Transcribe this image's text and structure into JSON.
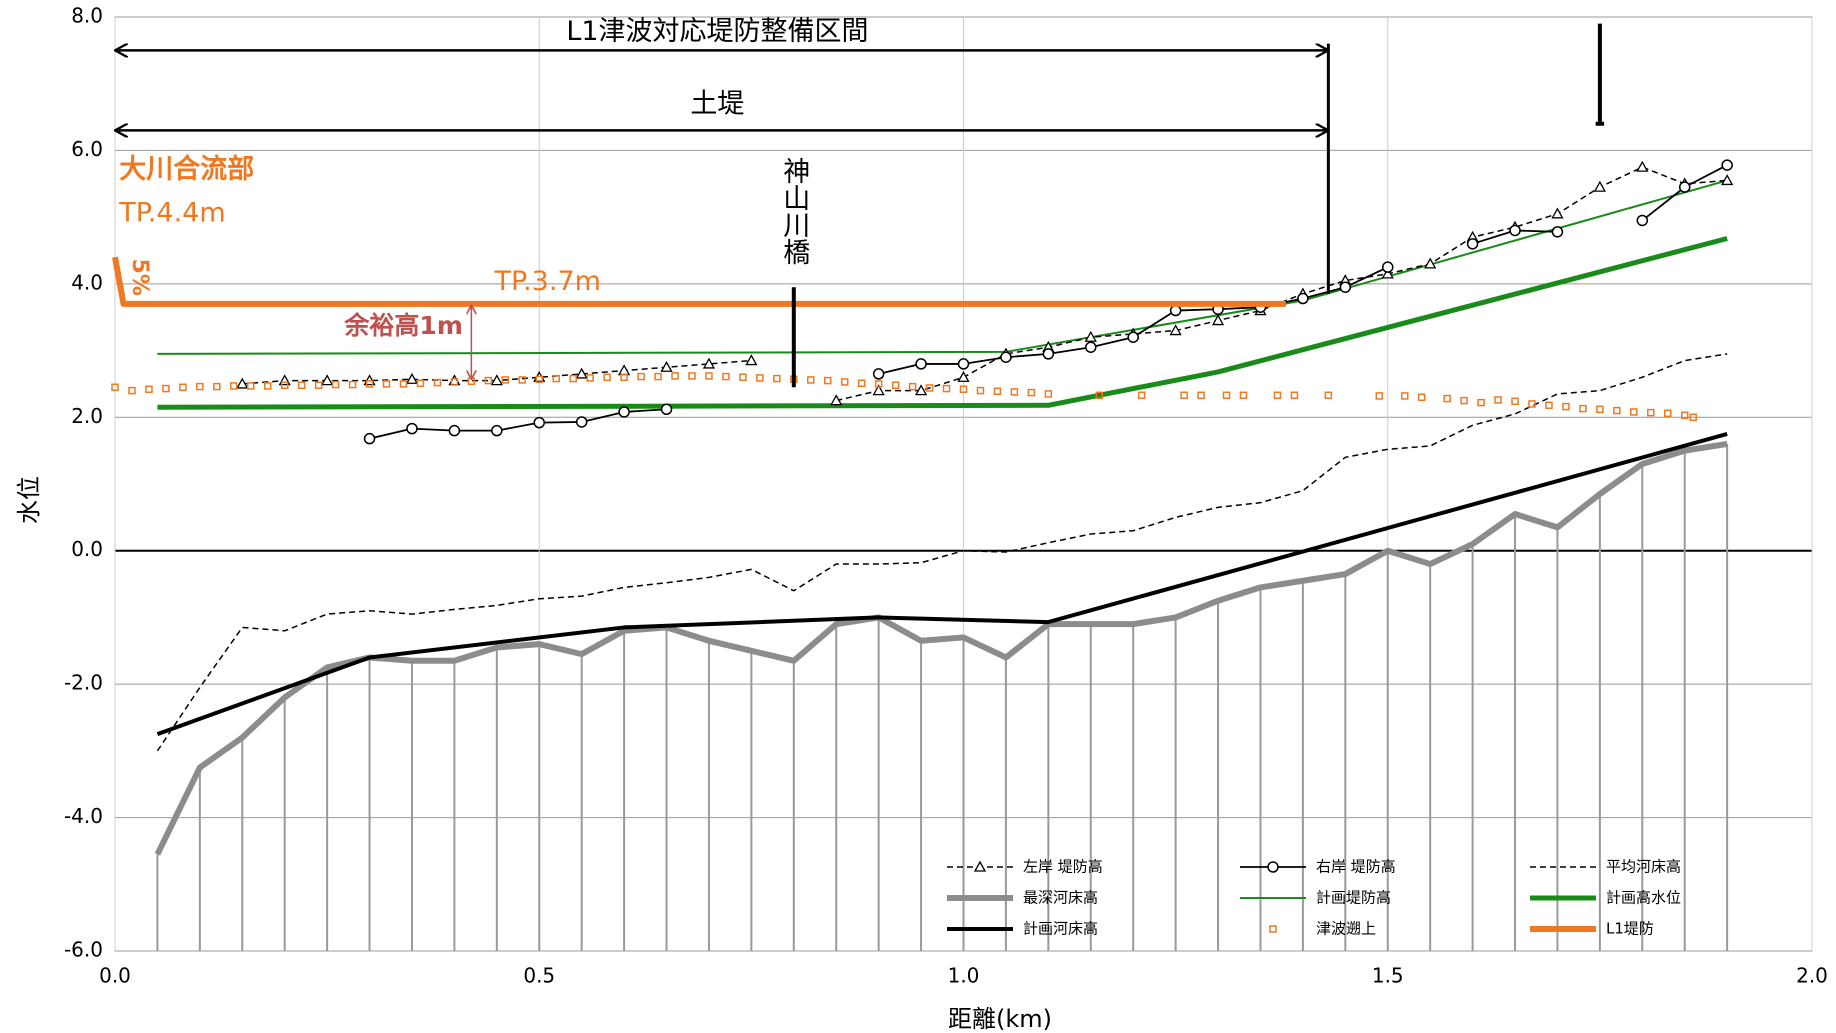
{
  "chart_data": {
    "type": "line",
    "x_label": "距離(km)",
    "y_label": "水位",
    "xlim": [
      0,
      2
    ],
    "xticks": [
      {
        "value": 0,
        "label": "0.0"
      },
      0.5,
      {
        "value": 1,
        "label": "1.0"
      },
      1.5,
      {
        "value": 2,
        "label": "2.0"
      }
    ],
    "ylim": [
      -6,
      8
    ],
    "yticks": [
      {
        "value": -6,
        "label": "-6.0"
      },
      {
        "value": -4,
        "label": "-4.0"
      },
      {
        "value": -2,
        "label": "-2.0"
      },
      {
        "value": 0,
        "label": "0.0"
      },
      {
        "value": 2,
        "label": "2.0"
      },
      {
        "value": 4,
        "label": "4.0"
      },
      {
        "value": 6,
        "label": "6.0"
      },
      {
        "value": 8,
        "label": "8.0"
      }
    ],
    "grid": true,
    "series": [
      {
        "name": "左岸 堤防高",
        "color": "#000000",
        "dashed": true,
        "marker": "triangle",
        "x": [
          0.15,
          0.2,
          0.25,
          0.3,
          0.35,
          0.4,
          0.45,
          0.5,
          0.55,
          0.6,
          0.65,
          0.7,
          0.75,
          0.8,
          0.85,
          0.9,
          0.95,
          1.0,
          1.05,
          1.1,
          1.15,
          1.2,
          1.25,
          1.3,
          1.35,
          1.4,
          1.45,
          1.5,
          1.55,
          1.6,
          1.65,
          1.7,
          1.75,
          1.8,
          1.85,
          1.9
        ],
        "values": [
          2.5,
          2.55,
          2.55,
          2.55,
          2.57,
          2.55,
          2.55,
          2.6,
          2.65,
          2.7,
          2.75,
          2.8,
          2.85,
          null,
          2.25,
          2.4,
          2.4,
          2.6,
          2.95,
          3.05,
          3.2,
          3.25,
          3.3,
          3.45,
          3.6,
          3.85,
          4.05,
          4.15,
          4.3,
          4.7,
          4.85,
          5.05,
          5.45,
          5.75,
          5.5,
          5.55
        ]
      },
      {
        "name": "右岸 堤防高",
        "color": "#000000",
        "dashed": false,
        "marker": "circle",
        "x": [
          0.3,
          0.35,
          0.4,
          0.45,
          0.5,
          0.55,
          0.6,
          0.65,
          0.7,
          0.9,
          0.95,
          1.0,
          1.05,
          1.1,
          1.15,
          1.2,
          1.25,
          1.3,
          1.35,
          1.4,
          1.45,
          1.5,
          1.55,
          1.6,
          1.65,
          1.7,
          1.75,
          1.8,
          1.85,
          1.9
        ],
        "values": [
          1.68,
          1.83,
          1.8,
          1.8,
          1.92,
          1.93,
          2.08,
          2.12,
          null,
          2.65,
          2.8,
          2.8,
          2.9,
          2.95,
          3.05,
          3.2,
          3.6,
          3.62,
          3.65,
          3.78,
          3.95,
          4.25,
          null,
          4.6,
          4.8,
          4.78,
          null,
          4.95,
          5.45,
          5.78
        ]
      },
      {
        "name": "平均河床高",
        "color": "#000000",
        "dashed": true,
        "marker": "none",
        "x": [
          0.05,
          0.1,
          0.15,
          0.2,
          0.25,
          0.3,
          0.35,
          0.4,
          0.45,
          0.5,
          0.55,
          0.6,
          0.65,
          0.7,
          0.75,
          0.8,
          0.85,
          0.9,
          0.95,
          1.0,
          1.05,
          1.1,
          1.15,
          1.2,
          1.25,
          1.3,
          1.35,
          1.4,
          1.45,
          1.5,
          1.55,
          1.6,
          1.65,
          1.7,
          1.75,
          1.8,
          1.85,
          1.9
        ],
        "values": [
          -3.0,
          -2.05,
          -1.15,
          -1.2,
          -0.95,
          -0.9,
          -0.95,
          -0.88,
          -0.82,
          -0.72,
          -0.68,
          -0.55,
          -0.48,
          -0.4,
          -0.28,
          -0.6,
          -0.2,
          -0.2,
          -0.18,
          0.0,
          -0.02,
          0.12,
          0.25,
          0.3,
          0.5,
          0.65,
          0.72,
          0.9,
          1.4,
          1.52,
          1.57,
          1.88,
          2.05,
          2.35,
          2.4,
          2.6,
          2.85,
          2.95
        ]
      },
      {
        "name": "最深河床高",
        "color": "#8c8c8c",
        "dashed": false,
        "marker": "none",
        "drop_lines": true,
        "x": [
          0.05,
          0.1,
          0.15,
          0.2,
          0.25,
          0.3,
          0.35,
          0.4,
          0.45,
          0.5,
          0.55,
          0.6,
          0.65,
          0.7,
          0.75,
          0.8,
          0.85,
          0.9,
          0.95,
          1.0,
          1.05,
          1.1,
          1.15,
          1.2,
          1.25,
          1.3,
          1.35,
          1.4,
          1.45,
          1.5,
          1.55,
          1.6,
          1.65,
          1.7,
          1.75,
          1.8,
          1.85,
          1.9
        ],
        "values": [
          -4.55,
          -3.25,
          -2.8,
          -2.2,
          -1.75,
          -1.6,
          -1.65,
          -1.65,
          -1.45,
          -1.4,
          -1.55,
          -1.2,
          -1.15,
          -1.35,
          -1.5,
          -1.65,
          -1.1,
          -1.0,
          -1.35,
          -1.3,
          -1.6,
          -1.1,
          -1.1,
          -1.1,
          -1.0,
          -0.75,
          -0.55,
          -0.45,
          -0.35,
          0.0,
          -0.2,
          0.1,
          0.55,
          0.35,
          0.85,
          1.3,
          1.5,
          1.6
        ]
      },
      {
        "name": "計画堤防高",
        "color": "#1a8a1a",
        "dashed": false,
        "marker": "none",
        "x": [
          0.05,
          1.05,
          1.4,
          1.9
        ],
        "values": [
          2.95,
          2.98,
          3.75,
          5.55
        ]
      },
      {
        "name": "計画高水位",
        "color": "#1a8a1a",
        "dashed": false,
        "marker": "none",
        "x": [
          0.05,
          1.1,
          1.3,
          1.9
        ],
        "values": [
          2.15,
          2.18,
          2.68,
          4.68
        ]
      },
      {
        "name": "計画河床高",
        "color": "#000000",
        "dashed": false,
        "marker": "none",
        "x": [
          0.05,
          0.3,
          0.6,
          0.9,
          1.1,
          1.9
        ],
        "values": [
          -2.75,
          -1.6,
          -1.15,
          -1.0,
          -1.07,
          1.75
        ]
      },
      {
        "name": "津波遡上",
        "color": "#f07820",
        "dashed": false,
        "marker": "square",
        "no_line": true,
        "x": [
          0,
          0.02,
          0.04,
          0.06,
          0.08,
          0.1,
          0.12,
          0.14,
          0.16,
          0.18,
          0.2,
          0.22,
          0.24,
          0.26,
          0.28,
          0.3,
          0.32,
          0.34,
          0.36,
          0.38,
          0.4,
          0.42,
          0.44,
          0.46,
          0.48,
          0.5,
          0.52,
          0.54,
          0.56,
          0.58,
          0.6,
          0.62,
          0.64,
          0.66,
          0.68,
          0.7,
          0.72,
          0.74,
          0.76,
          0.78,
          0.8,
          0.82,
          0.84,
          0.86,
          0.88,
          0.9,
          0.92,
          0.94,
          0.96,
          0.98,
          1.0,
          1.02,
          1.04,
          1.06,
          1.08,
          1.1,
          1.16,
          1.21,
          1.26,
          1.28,
          1.31,
          1.33,
          1.37,
          1.39,
          1.43,
          1.49,
          1.52,
          1.54,
          1.57,
          1.59,
          1.61,
          1.63,
          1.65,
          1.67,
          1.69,
          1.71,
          1.73,
          1.75,
          1.77,
          1.79,
          1.81,
          1.83,
          1.85,
          1.86
        ],
        "values": [
          2.45,
          2.4,
          2.42,
          2.43,
          2.45,
          2.46,
          2.46,
          2.47,
          2.47,
          2.47,
          2.48,
          2.48,
          2.48,
          2.49,
          2.49,
          2.5,
          2.5,
          2.5,
          2.51,
          2.52,
          2.53,
          2.54,
          2.55,
          2.56,
          2.56,
          2.57,
          2.58,
          2.58,
          2.59,
          2.6,
          2.6,
          2.61,
          2.61,
          2.62,
          2.62,
          2.62,
          2.61,
          2.6,
          2.59,
          2.58,
          2.57,
          2.56,
          2.55,
          2.53,
          2.51,
          2.5,
          2.48,
          2.46,
          2.44,
          2.43,
          2.42,
          2.4,
          2.39,
          2.38,
          2.37,
          2.35,
          2.33,
          2.33,
          2.33,
          2.33,
          2.33,
          2.33,
          2.33,
          2.33,
          2.33,
          2.32,
          2.32,
          2.3,
          2.28,
          2.25,
          2.22,
          2.26,
          2.24,
          2.2,
          2.18,
          2.16,
          2.13,
          2.12,
          2.1,
          2.08,
          2.07,
          2.06,
          2.03,
          2.0
        ]
      },
      {
        "name": "L1堤防",
        "color": "#f07820",
        "dashed": false,
        "marker": "none",
        "x": [
          0,
          0.01,
          1.38
        ],
        "values": [
          4.4,
          3.7,
          3.7
        ]
      }
    ],
    "annotations": {
      "section": "L1津波対応堤防整備区間",
      "embankment": "土堤",
      "bridge": "神山川橋",
      "confluence": "大川合流部",
      "confluence_level": "TP.4.4m",
      "slope": "5%",
      "levee_level": "TP.3.7m",
      "freeboard": "余裕高1m"
    }
  }
}
